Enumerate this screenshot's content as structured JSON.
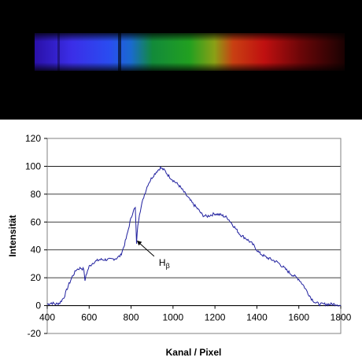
{
  "chart_data": {
    "type": "line",
    "xlabel": "Kanal / Pixel",
    "ylabel": "Intensität",
    "xlim": [
      400,
      1800
    ],
    "ylim": [
      -20,
      120
    ],
    "x_ticks": [
      "400",
      "600",
      "800",
      "1000",
      "1200",
      "1400",
      "1600",
      "1800"
    ],
    "y_ticks": [
      "-20",
      "0",
      "20",
      "40",
      "60",
      "80",
      "100",
      "120"
    ],
    "grid": "horizontal",
    "legend": "none",
    "line_color": "#1f1f9e",
    "annotation": {
      "text": "H",
      "subscript": "β",
      "x": 820,
      "y": 45
    },
    "series": [
      {
        "points": [
          [
            400,
            1
          ],
          [
            420,
            2
          ],
          [
            440,
            1
          ],
          [
            460,
            2
          ],
          [
            480,
            6
          ],
          [
            500,
            14
          ],
          [
            520,
            21
          ],
          [
            540,
            26
          ],
          [
            560,
            27
          ],
          [
            575,
            26
          ],
          [
            580,
            17
          ],
          [
            585,
            22
          ],
          [
            600,
            28
          ],
          [
            620,
            31
          ],
          [
            650,
            33
          ],
          [
            700,
            33
          ],
          [
            730,
            34
          ],
          [
            750,
            36
          ],
          [
            765,
            42
          ],
          [
            780,
            50
          ],
          [
            795,
            60
          ],
          [
            810,
            68
          ],
          [
            820,
            70
          ],
          [
            826,
            45
          ],
          [
            832,
            58
          ],
          [
            840,
            66
          ],
          [
            860,
            78
          ],
          [
            880,
            87
          ],
          [
            900,
            92
          ],
          [
            920,
            96
          ],
          [
            940,
            99
          ],
          [
            960,
            97
          ],
          [
            980,
            93
          ],
          [
            1000,
            90
          ],
          [
            1030,
            86
          ],
          [
            1060,
            80
          ],
          [
            1090,
            74
          ],
          [
            1120,
            69
          ],
          [
            1140,
            65
          ],
          [
            1160,
            64
          ],
          [
            1180,
            65
          ],
          [
            1200,
            66
          ],
          [
            1230,
            65
          ],
          [
            1260,
            63
          ],
          [
            1290,
            57
          ],
          [
            1320,
            51
          ],
          [
            1350,
            48
          ],
          [
            1380,
            44
          ],
          [
            1410,
            38
          ],
          [
            1440,
            35
          ],
          [
            1470,
            33
          ],
          [
            1500,
            31
          ],
          [
            1530,
            27
          ],
          [
            1560,
            23
          ],
          [
            1580,
            21
          ],
          [
            1600,
            19
          ],
          [
            1620,
            15
          ],
          [
            1640,
            10
          ],
          [
            1660,
            5
          ],
          [
            1680,
            2
          ],
          [
            1700,
            1
          ],
          [
            1720,
            1
          ],
          [
            1750,
            1
          ],
          [
            1780,
            1
          ],
          [
            1800,
            0
          ]
        ]
      }
    ]
  }
}
